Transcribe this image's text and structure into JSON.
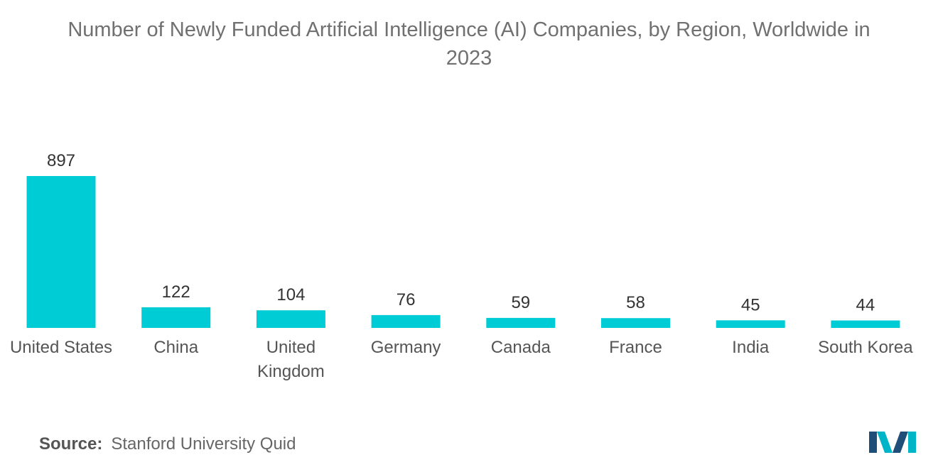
{
  "title_lines": [
    "Number of Newly Funded Artificial Intelligence (AI) Companies, by Region, Worldwide in",
    "2023"
  ],
  "source": {
    "label": "Source:",
    "text": "Stanford University Quid"
  },
  "colors": {
    "bar": "#00CCD6",
    "logo_dark": "#1F4E79",
    "logo_light": "#00B5C8"
  },
  "chart_data": {
    "type": "bar",
    "title": "Number of Newly Funded Artificial Intelligence (AI) Companies, by Region, Worldwide in 2023",
    "categories": [
      [
        "United States"
      ],
      [
        "China"
      ],
      [
        "United",
        "Kingdom"
      ],
      [
        "Germany"
      ],
      [
        "Canada"
      ],
      [
        "France"
      ],
      [
        "India"
      ],
      [
        "South Korea"
      ]
    ],
    "values": [
      897,
      122,
      104,
      76,
      59,
      58,
      45,
      44
    ],
    "xlabel": "",
    "ylabel": "",
    "ylim": [
      0,
      897
    ],
    "grid": false,
    "legend": "none"
  }
}
